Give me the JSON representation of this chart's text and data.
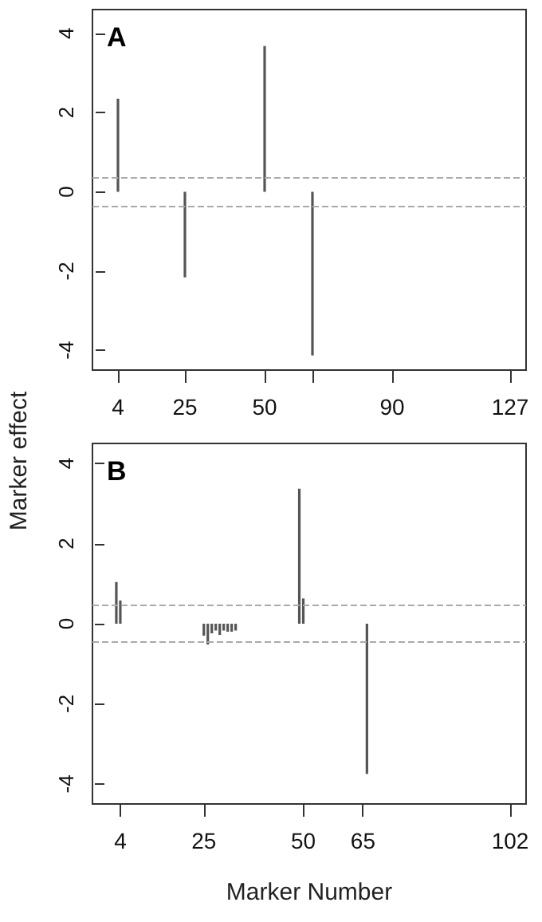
{
  "chart_data": [
    {
      "type": "bar",
      "title": "A",
      "ylabel": "Marker effect",
      "x": [
        4,
        25,
        50,
        65
      ],
      "values": [
        2.35,
        -2.16,
        3.68,
        -4.13
      ],
      "color": "#555555",
      "xlim": [
        -4,
        132
      ],
      "xticks": [
        4,
        25,
        50,
        {
          "value": 65,
          "label": null
        },
        90,
        127
      ],
      "ylim": [
        -4.5,
        4.6
      ],
      "yticks": [
        -4,
        -2,
        0,
        2,
        4
      ],
      "grid": false,
      "ref_lines": [
        {
          "axis": "y",
          "value": 0.37,
          "color": "#aaaaaa",
          "line_style": "dashed"
        },
        {
          "axis": "y",
          "value": -0.36,
          "color": "#aaaaaa",
          "line_style": "dashed"
        }
      ]
    },
    {
      "type": "bar",
      "title": "B",
      "xlabel": "Marker Number",
      "x": [
        3,
        4,
        25,
        26,
        27,
        28,
        29,
        30,
        31,
        32,
        33,
        49,
        50,
        66
      ],
      "values": [
        1.04,
        0.58,
        -0.3,
        -0.52,
        -0.24,
        -0.17,
        -0.28,
        -0.17,
        -0.2,
        -0.2,
        -0.17,
        3.37,
        0.63,
        -3.75
      ],
      "color": "#555555",
      "xlim": [
        -3,
        106
      ],
      "xticks": [
        4,
        25,
        50,
        65,
        102
      ],
      "ylim": [
        -4.5,
        4.5
      ],
      "yticks": [
        -4,
        -2,
        0,
        2,
        4
      ],
      "grid": false,
      "ref_lines": [
        {
          "axis": "y",
          "value": 0.47,
          "color": "#aaaaaa",
          "line_style": "dashed"
        },
        {
          "axis": "y",
          "value": -0.45,
          "color": "#aaaaaa",
          "line_style": "dashed"
        }
      ]
    }
  ]
}
